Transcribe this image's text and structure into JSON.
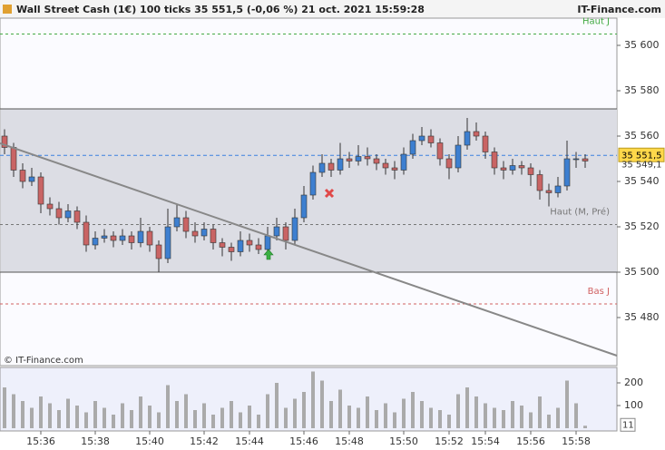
{
  "header": {
    "title": "Wall Street Cash (1€) 100 ticks 35 551,5 (-0,06 %) 21 oct. 2021 15:59:28",
    "brand": "IT-Finance.com"
  },
  "chart_data": [
    {
      "type": "candlestick",
      "categories": [
        null,
        null,
        null,
        null,
        "15:36",
        null,
        null,
        null,
        null,
        null,
        "15:38",
        null,
        null,
        null,
        null,
        null,
        "15:40",
        null,
        null,
        null,
        null,
        null,
        "15:42",
        null,
        null,
        null,
        null,
        "15:44",
        null,
        null,
        null,
        null,
        null,
        "15:46",
        null,
        null,
        null,
        null,
        "15:48",
        null,
        null,
        null,
        null,
        null,
        "15:50",
        null,
        null,
        null,
        null,
        "15:52",
        null,
        null,
        null,
        "15:54",
        null,
        null,
        null,
        null,
        "15:56",
        null,
        null,
        null,
        null,
        "15:58",
        null
      ],
      "candles": [
        [
          35560,
          35563,
          35552,
          35555
        ],
        [
          35555,
          35557,
          35542,
          35545
        ],
        [
          35545,
          35548,
          35537,
          35540
        ],
        [
          35540,
          35546,
          35538,
          35542
        ],
        [
          35542,
          35544,
          35526,
          35530
        ],
        [
          35530,
          35533,
          35525,
          35528
        ],
        [
          35528,
          35531,
          35521,
          35524
        ],
        [
          35524,
          35530,
          35522,
          35527
        ],
        [
          35527,
          35529,
          35519,
          35522
        ],
        [
          35522,
          35525,
          35509,
          35512
        ],
        [
          35512,
          35518,
          35510,
          35515
        ],
        [
          35515,
          35519,
          35513,
          35516
        ],
        [
          35516,
          35518,
          35511,
          35514
        ],
        [
          35514,
          35519,
          35512,
          35516
        ],
        [
          35516,
          35518,
          35510,
          35513
        ],
        [
          35513,
          35524,
          35511,
          35518
        ],
        [
          35518,
          35520,
          35509,
          35512
        ],
        [
          35512,
          35514,
          35500,
          35506
        ],
        [
          35506,
          35528,
          35504,
          35520
        ],
        [
          35520,
          35530,
          35518,
          35524
        ],
        [
          35524,
          35527,
          35515,
          35518
        ],
        [
          35518,
          35522,
          35513,
          35516
        ],
        [
          35516,
          35522,
          35514,
          35519
        ],
        [
          35519,
          35521,
          35510,
          35513
        ],
        [
          35513,
          35515,
          35507,
          35511
        ],
        [
          35511,
          35513,
          35505,
          35509
        ],
        [
          35509,
          35518,
          35507,
          35514
        ],
        [
          35514,
          35517,
          35509,
          35512
        ],
        [
          35512,
          35515,
          35508,
          35510
        ],
        [
          35510,
          35520,
          35508,
          35516
        ],
        [
          35516,
          35524,
          35514,
          35520
        ],
        [
          35520,
          35522,
          35510,
          35514
        ],
        [
          35514,
          35528,
          35512,
          35524
        ],
        [
          35524,
          35538,
          35522,
          35534
        ],
        [
          35534,
          35547,
          35532,
          35544
        ],
        [
          35544,
          35552,
          35542,
          35548
        ],
        [
          35548,
          35550,
          35542,
          35545
        ],
        [
          35545,
          35557,
          35543,
          35550
        ],
        [
          35550,
          35553,
          35546,
          35549
        ],
        [
          35549,
          35556,
          35547,
          35551
        ],
        [
          35551,
          35555,
          35547,
          35550
        ],
        [
          35550,
          35552,
          35545,
          35548
        ],
        [
          35548,
          35550,
          35543,
          35546
        ],
        [
          35546,
          35549,
          35541,
          35545
        ],
        [
          35545,
          35555,
          35543,
          35552
        ],
        [
          35552,
          35561,
          35550,
          35558
        ],
        [
          35558,
          35564,
          35556,
          35560
        ],
        [
          35560,
          35563,
          35555,
          35557
        ],
        [
          35557,
          35559,
          35547,
          35550
        ],
        [
          35550,
          35552,
          35541,
          35546
        ],
        [
          35546,
          35560,
          35544,
          35556
        ],
        [
          35556,
          35568,
          35554,
          35562
        ],
        [
          35562,
          35566,
          35558,
          35560
        ],
        [
          35560,
          35562,
          35550,
          35553
        ],
        [
          35553,
          35555,
          35543,
          35546
        ],
        [
          35546,
          35549,
          35541,
          35545
        ],
        [
          35545,
          35550,
          35543,
          35547
        ],
        [
          35547,
          35549,
          35543,
          35546
        ],
        [
          35546,
          35548,
          35538,
          35543
        ],
        [
          35543,
          35545,
          35532,
          35536
        ],
        [
          35536,
          35539,
          35529,
          35535
        ],
        [
          35535,
          35542,
          35533,
          35538
        ],
        [
          35538,
          35558,
          35536,
          35550
        ],
        [
          35550,
          35553,
          35546,
          35550
        ],
        [
          35550,
          35552,
          35546,
          35549
        ]
      ],
      "up_color": "#3d7fd0",
      "down_color": "#c96464",
      "ylim": [
        35458.8,
        35612
      ],
      "yticks": [
        {
          "value": 35480,
          "label": "35 480"
        },
        {
          "value": 35500,
          "label": "35 500"
        },
        {
          "value": 35520,
          "label": "35 520"
        },
        {
          "value": 35540,
          "label": "35 540"
        },
        {
          "value": 35560,
          "label": "35 560"
        },
        {
          "value": 35580,
          "label": "35 580"
        },
        {
          "value": 35600,
          "label": "35 600"
        }
      ],
      "zone": [
        35500,
        35572
      ],
      "levels": [
        {
          "name": "Haut J",
          "value": 35605,
          "color": "#44aa44"
        },
        {
          "name": "Haut (M, Pré)",
          "value": 35521,
          "color": "#777777"
        },
        {
          "name": "Bas J",
          "value": 35486,
          "color": "#d06060"
        }
      ],
      "last": {
        "value": 35551.5,
        "label": "35 551,5"
      },
      "ref": {
        "value": 35549.1,
        "label": "35 549,1"
      },
      "trendline": {
        "x": [
          -0.5,
          67.5
        ],
        "y": [
          35556.8,
          35463.2
        ]
      },
      "markers": [
        {
          "kind": "sell",
          "x": 35.8,
          "y": 35534.8
        },
        {
          "kind": "buy",
          "x": 29.1,
          "y": 35507.6
        }
      ],
      "copyright": "© IT-Finance.com"
    },
    {
      "type": "bar",
      "values": [
        180,
        150,
        120,
        90,
        140,
        110,
        80,
        130,
        100,
        70,
        120,
        90,
        60,
        110,
        80,
        140,
        100,
        70,
        190,
        120,
        150,
        80,
        110,
        60,
        90,
        120,
        70,
        100,
        60,
        150,
        200,
        90,
        130,
        160,
        250,
        210,
        120,
        170,
        100,
        90,
        140,
        80,
        110,
        70,
        130,
        160,
        120,
        90,
        80,
        60,
        150,
        180,
        140,
        110,
        90,
        80,
        120,
        100,
        70,
        140,
        60,
        90,
        210,
        110,
        11
      ],
      "color": "#aaaaaa",
      "ylim": [
        0,
        268
      ],
      "yticks": [
        100,
        200
      ]
    }
  ]
}
